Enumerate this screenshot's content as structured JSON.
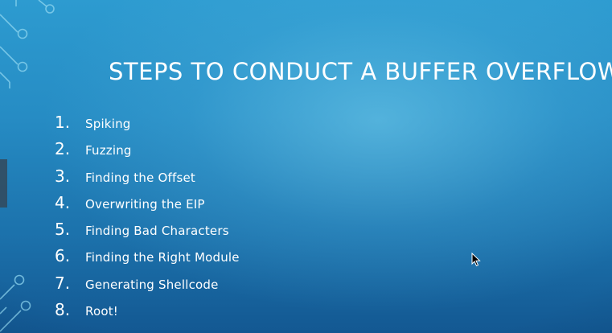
{
  "slide": {
    "title": "STEPS TO CONDUCT A BUFFER OVERFLOW",
    "steps": [
      {
        "number": "1.",
        "label": "Spiking"
      },
      {
        "number": "2.",
        "label": "Fuzzing"
      },
      {
        "number": "3.",
        "label": "Finding the Offset"
      },
      {
        "number": "4.",
        "label": "Overwriting the EIP"
      },
      {
        "number": "5.",
        "label": "Finding Bad Characters"
      },
      {
        "number": "6.",
        "label": "Finding the Right Module"
      },
      {
        "number": "7.",
        "label": "Generating Shellcode"
      },
      {
        "number": "8.",
        "label": "Root!"
      }
    ]
  },
  "colors": {
    "background_top": "#2d9bd0",
    "background_bottom": "#135892",
    "text": "#ffffff",
    "circuit_lines": "#8fd6ef"
  },
  "icons": {
    "circuit_decoration_top": "circuit-decoration-icon",
    "circuit_decoration_bottom": "circuit-decoration-icon",
    "cursor": "mouse-pointer-icon"
  }
}
